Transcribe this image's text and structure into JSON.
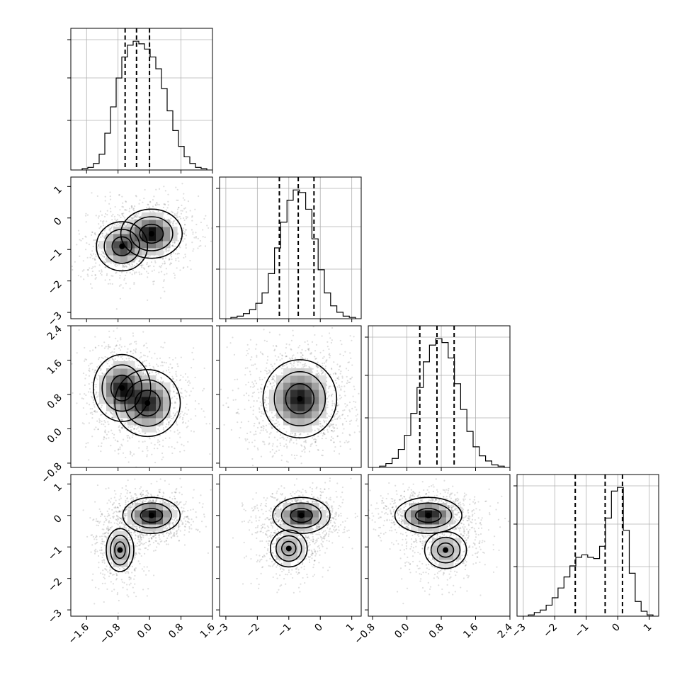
{
  "chart_data": {
    "type": "corner",
    "title": "",
    "grid": true,
    "parameters": [
      {
        "range": [
          -2.0,
          1.6
        ],
        "ticks": [
          -1.6,
          -0.8,
          0.0,
          0.8,
          1.6
        ],
        "tick_labels": [
          "−1.6",
          "−0.8",
          "0.0",
          "0.8",
          "1.6"
        ],
        "quantiles": [
          -0.62,
          -0.33,
          0.0
        ],
        "hist": [
          1,
          2,
          5,
          12,
          28,
          48,
          70,
          86,
          95,
          98,
          96,
          92,
          86,
          77,
          62,
          45,
          30,
          18,
          10,
          5,
          2,
          1
        ]
      },
      {
        "range": [
          -3.2,
          1.3
        ],
        "ticks": [
          -3,
          -2,
          -1,
          0,
          1
        ],
        "tick_labels": [
          "−3",
          "−2",
          "−1",
          "0",
          "1"
        ],
        "quantiles": [
          -1.3,
          -0.7,
          -0.2
        ],
        "hist": [
          1,
          2,
          4,
          7,
          12,
          20,
          35,
          55,
          75,
          92,
          100,
          98,
          85,
          62,
          38,
          20,
          10,
          5,
          2,
          1
        ]
      },
      {
        "range": [
          -0.9,
          2.4
        ],
        "ticks": [
          -0.8,
          0.0,
          0.8,
          1.6,
          2.4
        ],
        "tick_labels": [
          "−0.8",
          "0.0",
          "0.8",
          "1.6",
          "2.4"
        ],
        "quantiles": [
          0.3,
          0.7,
          1.1
        ],
        "hist": [
          1,
          3,
          7,
          14,
          25,
          42,
          62,
          82,
          95,
          100,
          97,
          85,
          65,
          45,
          28,
          16,
          9,
          5,
          2,
          1
        ]
      },
      {
        "range": [
          -3.2,
          1.3
        ],
        "ticks": [
          -3,
          -2,
          -1,
          0,
          1
        ],
        "tick_labels": [
          "−3",
          "−2",
          "−1",
          "0",
          "1"
        ],
        "quantiles": [
          -1.35,
          -0.4,
          0.15
        ],
        "hist": [
          1,
          3,
          5,
          9,
          15,
          23,
          32,
          41,
          48,
          50,
          48,
          47,
          57,
          80,
          102,
          105,
          70,
          35,
          12,
          4,
          1
        ]
      }
    ],
    "pairs": [
      {
        "x": 0,
        "y": 1,
        "modes": [
          {
            "cx": -0.7,
            "cy": -0.9,
            "sx": 0.25,
            "sy": 0.3,
            "w": 0.8
          },
          {
            "cx": 0.05,
            "cy": -0.5,
            "sx": 0.3,
            "sy": 0.3,
            "w": 1.0
          }
        ]
      },
      {
        "x": 0,
        "y": 2,
        "modes": [
          {
            "cx": -0.7,
            "cy": 0.95,
            "sx": 0.28,
            "sy": 0.3,
            "w": 0.9
          },
          {
            "cx": -0.05,
            "cy": 0.6,
            "sx": 0.32,
            "sy": 0.3,
            "w": 0.9
          }
        ]
      },
      {
        "x": 1,
        "y": 2,
        "modes": [
          {
            "cx": -0.65,
            "cy": 0.7,
            "sx": 0.45,
            "sy": 0.35,
            "w": 1.0
          }
        ]
      },
      {
        "x": 0,
        "y": 3,
        "modes": [
          {
            "cx": 0.05,
            "cy": 0.0,
            "sx": 0.28,
            "sy": 0.22,
            "w": 1.0
          },
          {
            "cx": -0.75,
            "cy": -1.1,
            "sx": 0.18,
            "sy": 0.35,
            "w": 0.45
          }
        ]
      },
      {
        "x": 1,
        "y": 3,
        "modes": [
          {
            "cx": -0.6,
            "cy": 0.0,
            "sx": 0.35,
            "sy": 0.22,
            "w": 1.0
          },
          {
            "cx": -1.0,
            "cy": -1.05,
            "sx": 0.3,
            "sy": 0.3,
            "w": 0.4
          }
        ]
      },
      {
        "x": 2,
        "y": 3,
        "modes": [
          {
            "cx": 0.5,
            "cy": 0.0,
            "sx": 0.3,
            "sy": 0.22,
            "w": 1.0
          },
          {
            "cx": 0.9,
            "cy": -1.1,
            "sx": 0.25,
            "sy": 0.3,
            "w": 0.4
          }
        ]
      }
    ],
    "colors": {
      "line": "#000000",
      "grid": "#b0b0b0",
      "scatter": "#000000"
    }
  }
}
